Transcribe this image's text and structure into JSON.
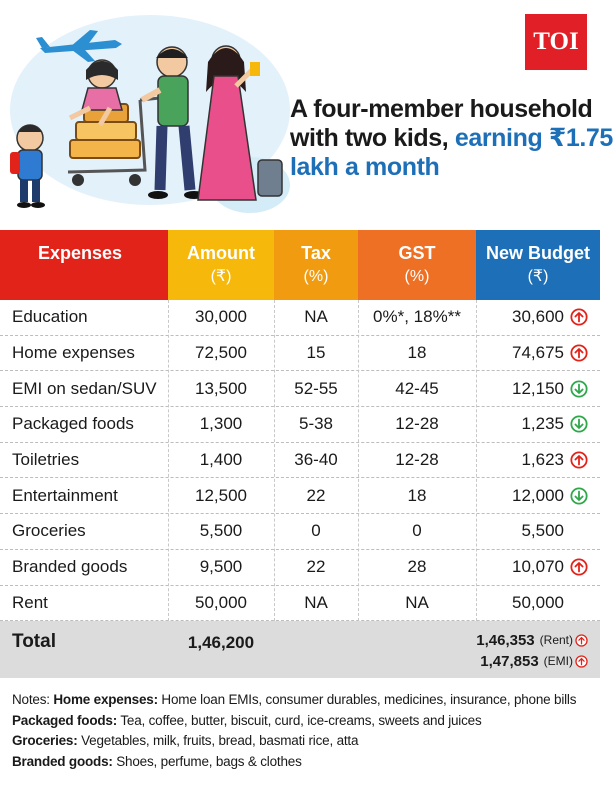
{
  "logo": {
    "text": "TOI"
  },
  "headline": {
    "line1": "A four-member household",
    "line2_plain": "with two kids, ",
    "line2_accent": "earning ₹1.75",
    "line3_accent": "lakh a month"
  },
  "colors": {
    "expenses_header": "#e2231a",
    "amount_header": "#f5b80b",
    "tax_header": "#f19b11",
    "gst_header": "#ee7024",
    "new_budget_header": "#1d6fb8",
    "arrow_up": "#e2231a",
    "arrow_down": "#2ea84a",
    "total_bg": "#dcdcdc"
  },
  "table": {
    "headers": {
      "expenses": "Expenses",
      "amount": "Amount",
      "amount_unit": "(₹)",
      "tax": "Tax",
      "tax_unit": "(%)",
      "gst": "GST",
      "gst_unit": "(%)",
      "new_budget": "New Budget",
      "new_budget_unit": "(₹)"
    },
    "rows": [
      {
        "expense": "Education",
        "amount": "30,000",
        "tax": "NA",
        "gst": "0%*, 18%**",
        "new_budget": "30,600",
        "trend": "up"
      },
      {
        "expense": "Home expenses",
        "amount": "72,500",
        "tax": "15",
        "gst": "18",
        "new_budget": "74,675",
        "trend": "up"
      },
      {
        "expense": "EMI on sedan/SUV",
        "amount": "13,500",
        "tax": "52-55",
        "gst": "42-45",
        "new_budget": "12,150",
        "trend": "down"
      },
      {
        "expense": "Packaged foods",
        "amount": "1,300",
        "tax": "5-38",
        "gst": "12-28",
        "new_budget": "1,235",
        "trend": "down"
      },
      {
        "expense": "Toiletries",
        "amount": "1,400",
        "tax": "36-40",
        "gst": "12-28",
        "new_budget": "1,623",
        "trend": "up"
      },
      {
        "expense": "Entertainment",
        "amount": "12,500",
        "tax": "22",
        "gst": "18",
        "new_budget": "12,000",
        "trend": "down"
      },
      {
        "expense": "Groceries",
        "amount": "5,500",
        "tax": "0",
        "gst": "0",
        "new_budget": "5,500",
        "trend": "none"
      },
      {
        "expense": "Branded goods",
        "amount": "9,500",
        "tax": "22",
        "gst": "28",
        "new_budget": "10,070",
        "trend": "up"
      },
      {
        "expense": "Rent",
        "amount": "50,000",
        "tax": "NA",
        "gst": "NA",
        "new_budget": "50,000",
        "trend": "none"
      }
    ],
    "total": {
      "label": "Total",
      "amount": "1,46,200",
      "new_budget_rent": "1,46,353",
      "rent_tag": "(Rent)",
      "new_budget_emi": "1,47,853",
      "emi_tag": "(EMI)"
    }
  },
  "notes": [
    {
      "prefix": "Notes: ",
      "label": "Home expenses:",
      "text": " Home loan EMIs, consumer durables, medicines, insurance, phone bills"
    },
    {
      "prefix": "",
      "label": "Packaged foods:",
      "text": " Tea, coffee, butter, biscuit, curd, ice-creams, sweets and juices"
    },
    {
      "prefix": "",
      "label": "Groceries:",
      "text": " Vegetables, milk, fruits, bread, basmati rice, atta"
    },
    {
      "prefix": "",
      "label": "Branded goods:",
      "text": " Shoes, perfume, bags & clothes"
    }
  ]
}
